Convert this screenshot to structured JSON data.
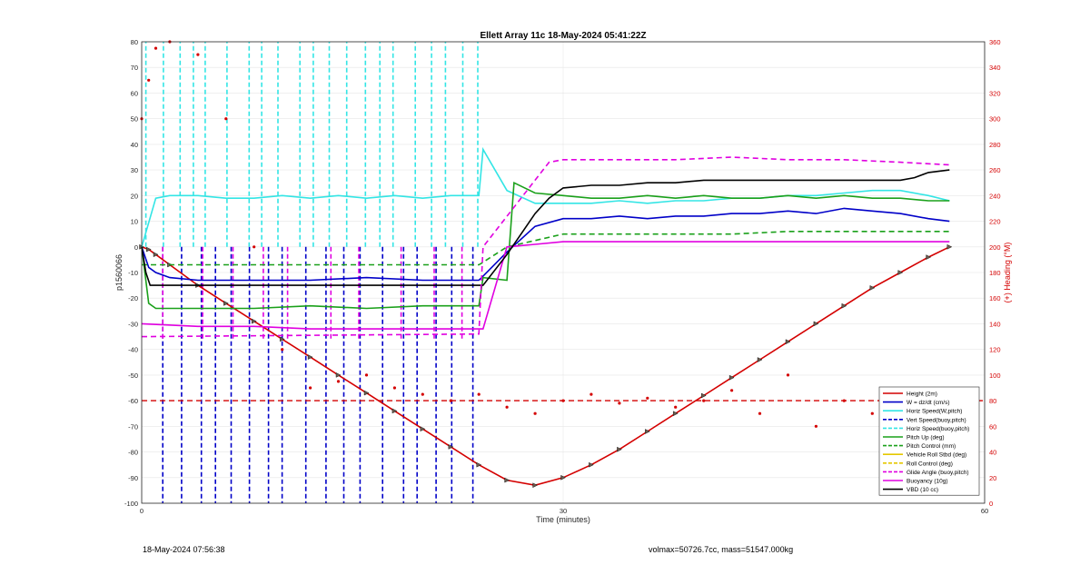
{
  "chart_data": {
    "type": "line",
    "title": "Ellett Array 11c 18-May-2024 05:41:22Z",
    "xlabel": "Time (minutes)",
    "ylabel_left": "p1560066",
    "ylabel_right": "(+) Heading (°M)",
    "xlim": [
      0,
      60
    ],
    "ylim_left": [
      -100,
      80
    ],
    "ylim_right": [
      0,
      360
    ],
    "x_ticks": [
      "0",
      "30",
      "60"
    ],
    "y_ticks_left": [
      "80",
      "70",
      "60",
      "50",
      "40",
      "30",
      "20",
      "10",
      "0",
      "-10",
      "-20",
      "-30",
      "-40",
      "-50",
      "-60",
      "-70",
      "-80",
      "-90",
      "-100"
    ],
    "y_ticks_right": [
      "360",
      "340",
      "320",
      "300",
      "280",
      "260",
      "240",
      "220",
      "200",
      "180",
      "160",
      "140",
      "120",
      "100",
      "80",
      "60",
      "40",
      "20",
      "0"
    ],
    "grid": true,
    "legend_position": "bottom-right",
    "legend": [
      {
        "label": "Height (2m)",
        "color": "#d40000",
        "style": "solid-marker"
      },
      {
        "label": "W = dz/dt (cm/s)",
        "color": "#0000c8",
        "style": "solid"
      },
      {
        "label": "Horiz Speed(W,pitch)",
        "color": "#33e5e5",
        "style": "solid"
      },
      {
        "label": "Vert Speed(buoy,pitch)",
        "color": "#0000c8",
        "style": "dashed"
      },
      {
        "label": "Horiz Speed(buoy,pitch)",
        "color": "#33e5e5",
        "style": "dashed"
      },
      {
        "label": "Pitch Up (deg)",
        "color": "#1aa01a",
        "style": "solid"
      },
      {
        "label": "Pitch Control (mm)",
        "color": "#1aa01a",
        "style": "dashed"
      },
      {
        "label": "Vehicle Roll Stbd (deg)",
        "color": "#e5c800",
        "style": "solid"
      },
      {
        "label": "Roll Control (deg)",
        "color": "#e5c800",
        "style": "dashed"
      },
      {
        "label": "Glide Angle (buoy,pitch)",
        "color": "#e000e0",
        "style": "dashed"
      },
      {
        "label": "Buoyancy (10g)",
        "color": "#e000e0",
        "style": "solid"
      },
      {
        "label": "VBD (10 cc)",
        "color": "#000000",
        "style": "solid"
      }
    ],
    "series": [
      {
        "name": "Height (2m)",
        "axis": "left",
        "x": [
          0,
          0.5,
          1,
          2,
          4,
          6,
          8,
          10,
          12,
          14,
          16,
          18,
          20,
          22,
          24,
          26,
          28,
          30,
          32,
          34,
          36,
          38,
          40,
          42,
          44,
          46,
          48,
          50,
          52,
          54,
          56,
          57.5
        ],
        "y": [
          0,
          -1,
          -3,
          -7,
          -15,
          -22,
          -29,
          -36,
          -43,
          -50,
          -57,
          -64,
          -71,
          -78,
          -85,
          -91,
          -93,
          -90,
          -85,
          -79,
          -72,
          -65,
          -58,
          -51,
          -44,
          -37,
          -30,
          -23,
          -16,
          -10,
          -4,
          0
        ]
      },
      {
        "name": "W = dz/dt (cm/s)",
        "axis": "left",
        "x": [
          0,
          0.5,
          1,
          2,
          4,
          8,
          12,
          16,
          20,
          24,
          24.2,
          26,
          28,
          30,
          32,
          34,
          36,
          38,
          40,
          42,
          44,
          46,
          48,
          50,
          52,
          54,
          56,
          57.5
        ],
        "y": [
          0,
          -8,
          -10,
          -12,
          -13,
          -13,
          -13,
          -12,
          -13,
          -13,
          -12,
          -2,
          8,
          11,
          11,
          12,
          11,
          12,
          12,
          13,
          13,
          14,
          13,
          15,
          14,
          13,
          11,
          10
        ]
      },
      {
        "name": "Horiz Speed(W,pitch)",
        "axis": "left",
        "x": [
          0,
          1,
          2,
          4,
          6,
          8,
          10,
          12,
          14,
          16,
          18,
          20,
          22,
          24,
          24.3,
          26,
          28,
          30,
          32,
          34,
          36,
          38,
          40,
          42,
          44,
          46,
          48,
          50,
          52,
          54,
          56,
          57.5
        ],
        "y": [
          0,
          19,
          20,
          20,
          19,
          19,
          20,
          19,
          20,
          19,
          20,
          19,
          20,
          20,
          38,
          22,
          17,
          17,
          17,
          18,
          17,
          18,
          18,
          19,
          19,
          20,
          20,
          21,
          22,
          22,
          20,
          18
        ]
      },
      {
        "name": "Pitch Up (deg)",
        "axis": "left",
        "x": [
          0,
          0.5,
          1,
          4,
          8,
          12,
          16,
          20,
          24,
          24.3,
          26,
          26.5,
          28,
          30,
          32,
          34,
          36,
          38,
          40,
          42,
          44,
          46,
          48,
          50,
          52,
          54,
          56,
          57.5
        ],
        "y": [
          0,
          -22,
          -24,
          -24,
          -24,
          -23,
          -24,
          -23,
          -23,
          -12,
          -13,
          25,
          21,
          20,
          19,
          19,
          20,
          19,
          20,
          19,
          19,
          20,
          19,
          20,
          19,
          19,
          18,
          18
        ]
      },
      {
        "name": "Pitch Control (mm)",
        "axis": "left",
        "x": [
          0,
          24,
          24.3,
          26,
          30,
          34,
          38,
          42,
          46,
          50,
          54,
          57.5
        ],
        "y": [
          -7,
          -7,
          -6,
          0,
          5,
          5,
          5,
          5,
          6,
          6,
          6,
          6
        ]
      },
      {
        "name": "Buoyancy (10g)",
        "axis": "left",
        "x": [
          0,
          4,
          8,
          12,
          16,
          20,
          24,
          24.3,
          26,
          28,
          30,
          34,
          38,
          42,
          46,
          50,
          54,
          57.5
        ],
        "y": [
          -30,
          -31,
          -31,
          -32,
          -32,
          -32,
          -32,
          -32,
          0,
          1,
          2,
          2,
          2,
          2,
          2,
          2,
          2,
          2
        ]
      },
      {
        "name": "VBD (10 cc)",
        "axis": "left",
        "x": [
          0,
          0.3,
          0.6,
          24,
          24.3,
          26,
          27,
          28,
          29,
          30,
          32,
          34,
          36,
          38,
          40,
          42,
          44,
          46,
          48,
          50,
          52,
          54,
          55,
          56,
          57.5
        ],
        "y": [
          0,
          -10,
          -15,
          -15,
          -15,
          -3,
          5,
          13,
          19,
          23,
          24,
          24,
          25,
          25,
          26,
          26,
          26,
          26,
          26,
          26,
          26,
          26,
          27,
          29,
          30
        ]
      },
      {
        "name": "Glide Angle (buoy,pitch)",
        "axis": "left",
        "x": [
          0,
          24,
          24.3,
          29,
          30,
          34,
          38,
          42,
          46,
          50,
          54,
          57.5
        ],
        "y": [
          -35,
          -34,
          0,
          33,
          34,
          34,
          34,
          35,
          34,
          34,
          33,
          32
        ]
      },
      {
        "name": "Heading",
        "axis": "right",
        "x": [
          0,
          0.5,
          1,
          2,
          4,
          6,
          8,
          10,
          12,
          14,
          16,
          18,
          20,
          22,
          24,
          26,
          28,
          30,
          32,
          34,
          36,
          38,
          40,
          42,
          44,
          46,
          48,
          50,
          52,
          54,
          56,
          57.5
        ],
        "y": [
          300,
          330,
          355,
          360,
          350,
          300,
          200,
          120,
          90,
          95,
          100,
          90,
          85,
          80,
          85,
          75,
          70,
          80,
          85,
          78,
          82,
          75,
          80,
          88,
          70,
          100,
          60,
          80,
          70,
          75,
          80,
          82
        ]
      }
    ],
    "reference_lines": [
      {
        "name": "Heading target",
        "axis": "right",
        "y": 80,
        "style": "dashed",
        "color": "#d40000"
      }
    ]
  },
  "footer": {
    "left": "18-May-2024 07:56:38",
    "right": "volmax=50726.7cc, mass=51547.000kg"
  }
}
